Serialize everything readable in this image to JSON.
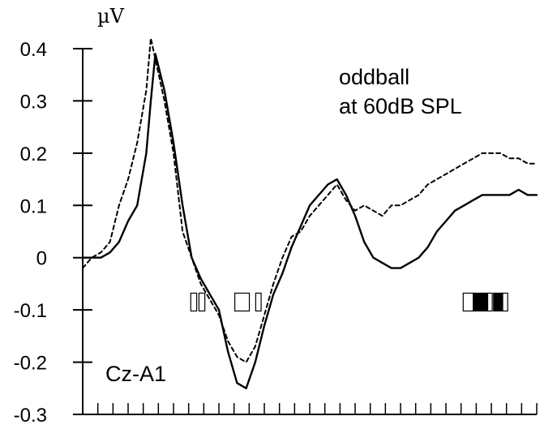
{
  "chart_data": {
    "type": "line",
    "title": "",
    "ylabel": "µV",
    "xlabel": "",
    "ylim": [
      -0.3,
      0.4
    ],
    "yticks": [
      "0.4",
      "0.3",
      "0.2",
      "0.1",
      "0",
      "-0.1",
      "-0.2",
      "-0.3"
    ],
    "x_range": [
      0,
      100
    ],
    "x_tick_count": 30,
    "grid": false,
    "legend": "none",
    "annotations": {
      "condition_line1": "oddball",
      "condition_line2": "at 60dB SPL",
      "electrode": "Cz-A1"
    },
    "series": [
      {
        "style": "solid",
        "color": "#000000",
        "x": [
          0,
          2,
          4,
          6,
          8,
          10,
          12,
          14,
          15,
          16,
          18,
          20,
          22,
          24,
          26,
          28,
          30,
          32,
          34,
          36,
          38,
          40,
          42,
          44,
          46,
          48,
          50,
          52,
          54,
          56,
          58,
          60,
          62,
          64,
          66,
          68,
          70,
          72,
          74,
          76,
          78,
          80,
          82,
          84,
          86,
          88,
          90,
          92,
          94,
          96,
          98,
          100
        ],
        "values": [
          0.0,
          0.0,
          0.0,
          0.01,
          0.03,
          0.07,
          0.1,
          0.2,
          0.3,
          0.39,
          0.32,
          0.22,
          0.1,
          0.0,
          -0.04,
          -0.07,
          -0.1,
          -0.18,
          -0.24,
          -0.25,
          -0.2,
          -0.13,
          -0.07,
          -0.03,
          0.02,
          0.06,
          0.1,
          0.12,
          0.14,
          0.15,
          0.12,
          0.08,
          0.03,
          0.0,
          -0.01,
          -0.02,
          -0.02,
          -0.01,
          0.0,
          0.02,
          0.05,
          0.07,
          0.09,
          0.1,
          0.11,
          0.12,
          0.12,
          0.12,
          0.12,
          0.13,
          0.12,
          0.12
        ]
      },
      {
        "style": "dashed",
        "color": "#000000",
        "x": [
          0,
          2,
          4,
          6,
          8,
          10,
          12,
          14,
          15,
          16,
          18,
          20,
          22,
          24,
          26,
          28,
          30,
          32,
          34,
          36,
          38,
          40,
          42,
          44,
          46,
          48,
          50,
          52,
          54,
          56,
          58,
          60,
          62,
          64,
          66,
          68,
          70,
          72,
          74,
          76,
          78,
          80,
          82,
          84,
          86,
          88,
          90,
          92,
          94,
          96,
          98,
          100
        ],
        "values": [
          -0.02,
          0.0,
          0.01,
          0.03,
          0.1,
          0.15,
          0.22,
          0.32,
          0.42,
          0.38,
          0.3,
          0.2,
          0.05,
          0.0,
          -0.05,
          -0.08,
          -0.11,
          -0.16,
          -0.19,
          -0.2,
          -0.17,
          -0.11,
          -0.05,
          0.0,
          0.04,
          0.05,
          0.08,
          0.1,
          0.12,
          0.14,
          0.11,
          0.09,
          0.1,
          0.09,
          0.08,
          0.1,
          0.1,
          0.11,
          0.12,
          0.14,
          0.15,
          0.16,
          0.17,
          0.18,
          0.19,
          0.2,
          0.2,
          0.2,
          0.19,
          0.19,
          0.18,
          0.18
        ]
      }
    ],
    "significance_markers": [
      {
        "x": 23.8,
        "width": 1.3,
        "fill": "#ffffff"
      },
      {
        "x": 25.6,
        "width": 1.3,
        "fill": "#ffffff"
      },
      {
        "x": 33.5,
        "width": 3.2,
        "fill": "#ffffff"
      },
      {
        "x": 38.1,
        "width": 1.2,
        "fill": "#ffffff"
      },
      {
        "x": 83.8,
        "width": 2.2,
        "fill": "#ffffff"
      },
      {
        "x": 86.0,
        "width": 3.2,
        "fill": "#000000"
      },
      {
        "x": 89.2,
        "width": 1.0,
        "fill": "#ffffff"
      },
      {
        "x": 90.5,
        "width": 2.0,
        "fill": "#000000"
      },
      {
        "x": 92.5,
        "width": 1.1,
        "fill": "#ffffff"
      }
    ],
    "significance_marker_y": -0.085
  }
}
